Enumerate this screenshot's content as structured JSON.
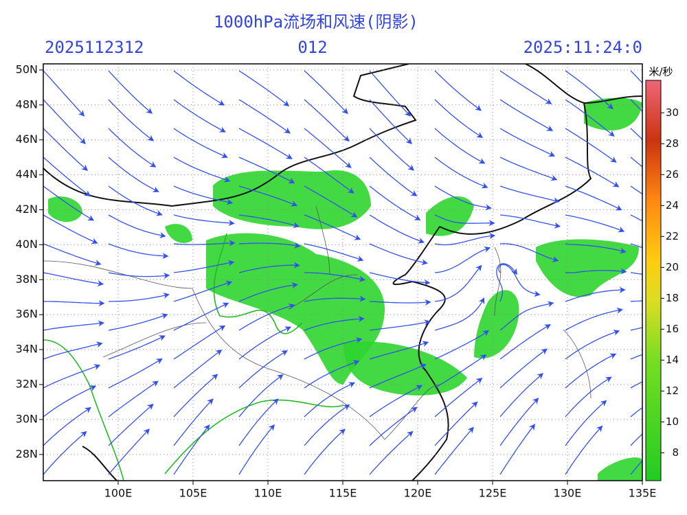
{
  "map": {
    "title": "1000hPa流场和风速(阴影)",
    "init_time": "2025112312",
    "forecast_hour": "012",
    "valid_time": "2025:11:24:0",
    "lonlim": [
      95,
      135
    ],
    "latlim": [
      26.5,
      50.35
    ],
    "lat_ticks": [
      {
        "value": 28,
        "label": "28N"
      },
      {
        "value": 30,
        "label": "30N"
      },
      {
        "value": 32,
        "label": "32N"
      },
      {
        "value": 34,
        "label": "34N"
      },
      {
        "value": 36,
        "label": "36N"
      },
      {
        "value": 38,
        "label": "38N"
      },
      {
        "value": 40,
        "label": "40N"
      },
      {
        "value": 42,
        "label": "42N"
      },
      {
        "value": 44,
        "label": "44N"
      },
      {
        "value": 46,
        "label": "46N"
      },
      {
        "value": 48,
        "label": "48N"
      },
      {
        "value": 50,
        "label": "50N"
      }
    ],
    "lon_ticks": [
      {
        "value": 100,
        "label": "100E"
      },
      {
        "value": 105,
        "label": "105E"
      },
      {
        "value": 110,
        "label": "110E"
      },
      {
        "value": 115,
        "label": "115E"
      },
      {
        "value": 120,
        "label": "120E"
      },
      {
        "value": 125,
        "label": "125E"
      },
      {
        "value": 130,
        "label": "130E"
      },
      {
        "value": 135,
        "label": "135E"
      }
    ],
    "colorbar": {
      "unit": "米/秒",
      "range": [
        6.2,
        32.1
      ],
      "ticks": [
        8,
        10,
        12,
        14,
        16,
        18,
        20,
        22,
        24,
        26,
        28,
        30
      ]
    }
  }
}
